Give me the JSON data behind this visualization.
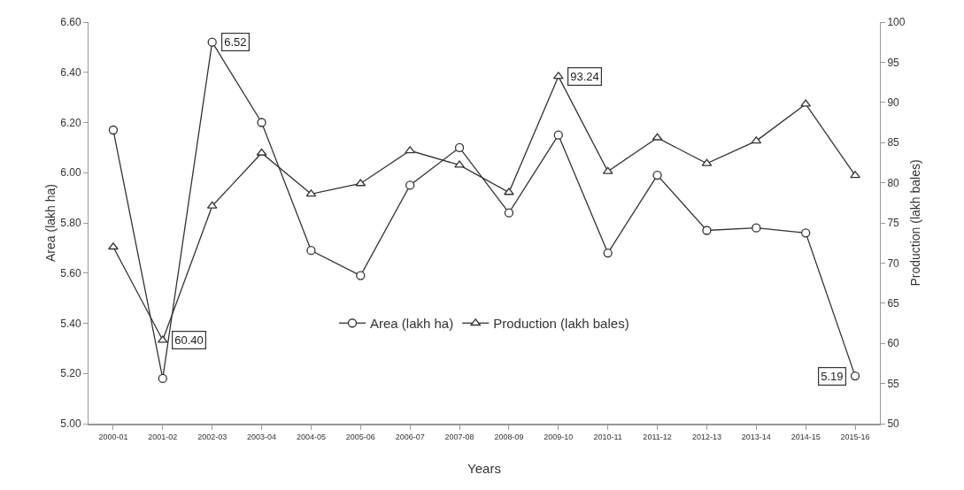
{
  "chart_data": {
    "type": "line",
    "xlabel": "Years",
    "ylabel": "Area (lakh ha)",
    "y2label": "Production (lakh bales)",
    "categories": [
      "2000-01",
      "2001-02",
      "2002-03",
      "2003-04",
      "2004-05",
      "2005-06",
      "2006-07",
      "2007-08",
      "2008-09",
      "2009-10",
      "2010-11",
      "2011-12",
      "2012-13",
      "2013-14",
      "2014-15",
      "2015-16"
    ],
    "series": [
      {
        "name": "Area (lakh ha)",
        "color": "#333333",
        "marker": "circle",
        "values": [
          6.17,
          5.18,
          6.52,
          6.2,
          5.69,
          5.59,
          5.95,
          6.1,
          5.84,
          6.15,
          5.68,
          5.99,
          5.77,
          5.78,
          5.76,
          5.19
        ],
        "value_labels": [
          null,
          null,
          "6.52",
          null,
          null,
          null,
          null,
          null,
          null,
          null,
          null,
          null,
          null,
          null,
          null,
          "5.19"
        ]
      },
      {
        "name": "Production (lakh bales)",
        "color": "#333333",
        "marker": "triangle",
        "axis": "y2",
        "values": [
          72,
          60.4,
          77.1,
          83.7,
          78.6,
          79.9,
          84.0,
          82.2,
          78.8,
          93.24,
          81.4,
          85.6,
          82.4,
          85.2,
          89.8,
          80.9
        ],
        "value_labels": [
          null,
          "60.40",
          null,
          null,
          null,
          null,
          null,
          null,
          null,
          "93.24",
          null,
          null,
          null,
          null,
          null,
          null
        ]
      }
    ],
    "ylim": [
      5.0,
      6.6
    ],
    "yticks": [
      {
        "value": 5.0,
        "label": "5.00"
      },
      {
        "value": 5.2,
        "label": "5.20"
      },
      {
        "value": 5.4,
        "label": "5.40"
      },
      {
        "value": 5.6,
        "label": "5.60"
      },
      {
        "value": 5.8,
        "label": "5.80"
      },
      {
        "value": 6.0,
        "label": "6.00"
      },
      {
        "value": 6.2,
        "label": "6.20"
      },
      {
        "value": 6.4,
        "label": "6.40"
      },
      {
        "value": 6.6,
        "label": "6.60"
      }
    ],
    "y2lim": [
      50,
      100
    ],
    "y2ticks": [
      50,
      55,
      60,
      65,
      70,
      75,
      80,
      85,
      90,
      95,
      100
    ],
    "grid": false,
    "legend": "bottom",
    "line_style": "solid"
  }
}
